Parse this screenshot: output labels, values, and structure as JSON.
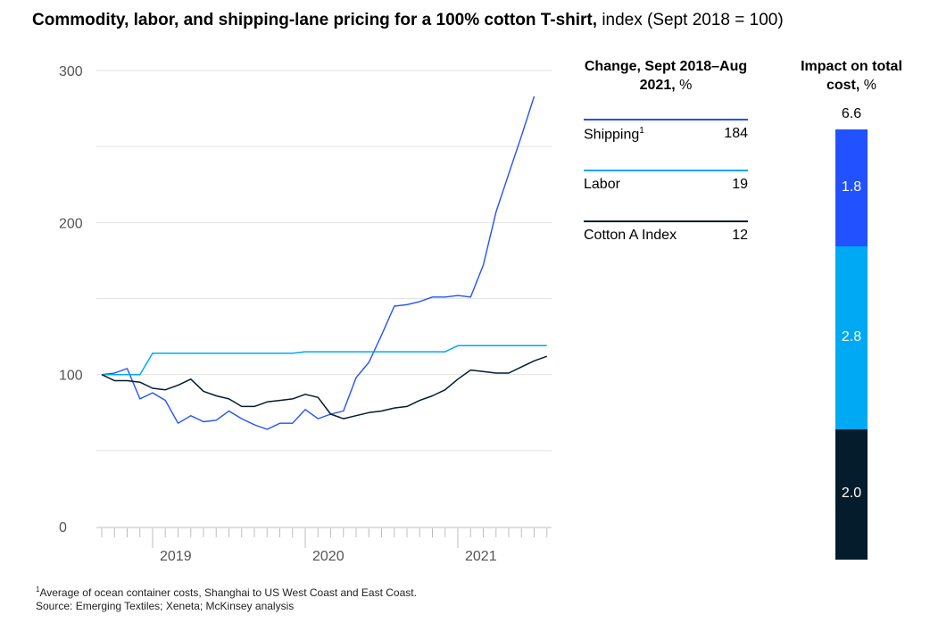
{
  "title": {
    "bold": "Commodity, labor, and shipping-lane pricing for a 100% cotton T-shirt,",
    "normal": "index (Sept 2018 = 100)"
  },
  "chart_data": {
    "type": "line",
    "title": "Commodity, labor, and shipping-lane pricing for a 100% cotton T-shirt, index (Sept 2018 = 100)",
    "xlabel": "",
    "ylabel": "",
    "ylim": [
      0,
      300
    ],
    "yticks": [
      0,
      100,
      200,
      300
    ],
    "year_labels": [
      "2019",
      "2020",
      "2021"
    ],
    "x": [
      "2018-09",
      "2018-10",
      "2018-11",
      "2018-12",
      "2019-01",
      "2019-02",
      "2019-03",
      "2019-04",
      "2019-05",
      "2019-06",
      "2019-07",
      "2019-08",
      "2019-09",
      "2019-10",
      "2019-11",
      "2019-12",
      "2020-01",
      "2020-02",
      "2020-03",
      "2020-04",
      "2020-05",
      "2020-06",
      "2020-07",
      "2020-08",
      "2020-09",
      "2020-10",
      "2020-11",
      "2020-12",
      "2021-01",
      "2021-02",
      "2021-03",
      "2021-04",
      "2021-05",
      "2021-06",
      "2021-07",
      "2021-08"
    ],
    "series": [
      {
        "name": "Shipping",
        "color": "#2251ff",
        "values": [
          100,
          101,
          104,
          84,
          88,
          83,
          68,
          73,
          69,
          70,
          76,
          71,
          67,
          64,
          68,
          68,
          77,
          71,
          74,
          76,
          98,
          108,
          126,
          145,
          146,
          148,
          151,
          151,
          152,
          151,
          172,
          207,
          232,
          257,
          283,
          null
        ]
      },
      {
        "name": "Labor",
        "color": "#00a9f4",
        "values": [
          100,
          100,
          100,
          100,
          114,
          114,
          114,
          114,
          114,
          114,
          114,
          114,
          114,
          114,
          114,
          114,
          115,
          115,
          115,
          115,
          115,
          115,
          115,
          115,
          115,
          115,
          115,
          115,
          119,
          119,
          119,
          119,
          119,
          119,
          119,
          119
        ]
      },
      {
        "name": "Cotton A Index",
        "color": "#051c2c",
        "values": [
          100,
          96,
          96,
          95,
          91,
          90,
          93,
          97,
          89,
          86,
          84,
          79,
          79,
          82,
          83,
          84,
          87,
          85,
          74,
          71,
          73,
          75,
          76,
          78,
          79,
          83,
          86,
          90,
          97,
          103,
          102,
          101,
          101,
          105,
          109,
          112
        ]
      }
    ]
  },
  "legend": {
    "header": {
      "bold": "Change, Sept 2018–Aug 2021,",
      "unit": "%"
    },
    "rows": [
      {
        "name": "Shipping",
        "sup": "1",
        "value": "184",
        "color": "#2251ff"
      },
      {
        "name": "Labor",
        "sup": "",
        "value": "19",
        "color": "#00a9f4"
      },
      {
        "name": "Cotton A Index",
        "sup": "",
        "value": "12",
        "color": "#051c2c"
      }
    ]
  },
  "impact": {
    "header": {
      "bold": "Impact on total cost,",
      "unit": "%"
    },
    "total": "6.6",
    "segments": [
      {
        "name": "Shipping",
        "value": 1.8,
        "label": "1.8",
        "color": "#2251ff"
      },
      {
        "name": "Labor",
        "value": 2.8,
        "label": "2.8",
        "color": "#00a9f4"
      },
      {
        "name": "Cotton A Index",
        "value": 2.0,
        "label": "2.0",
        "color": "#051c2c"
      }
    ]
  },
  "footnotes": {
    "note_sup": "1",
    "note": "Average of ocean container costs, Shanghai to US West Coast and East Coast.",
    "source": "Source: Emerging Textiles; Xeneta; McKinsey analysis"
  }
}
